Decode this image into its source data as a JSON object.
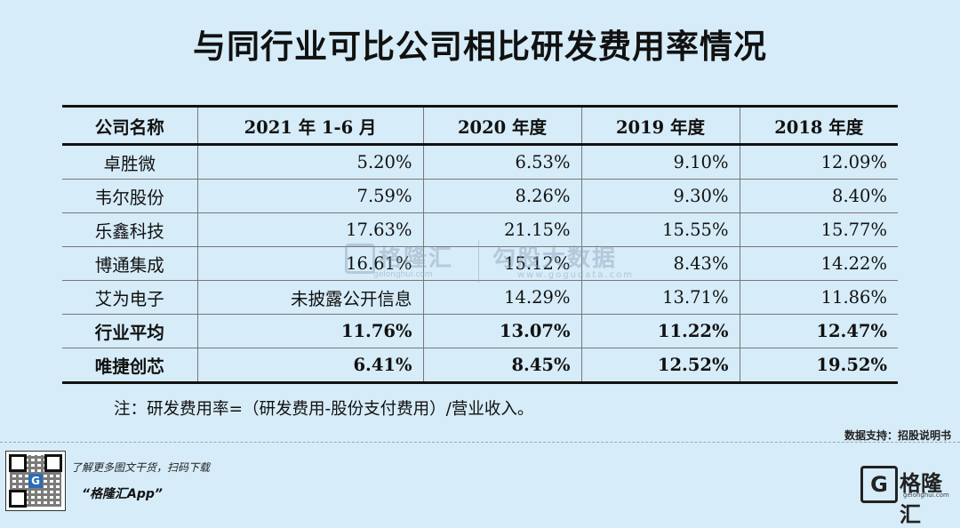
{
  "title": "与同行业可比公司相比研发费用率情况",
  "table": {
    "headers": [
      "公司名称",
      "2021 年 1-6 月",
      "2020 年度",
      "2019 年度",
      "2018 年度"
    ],
    "rows": [
      {
        "name": "卓胜微",
        "cells": [
          "5.20%",
          "6.53%",
          "9.10%",
          "12.09%"
        ],
        "bold": false
      },
      {
        "name": "韦尔股份",
        "cells": [
          "7.59%",
          "8.26%",
          "9.30%",
          "8.40%"
        ],
        "bold": false
      },
      {
        "name": "乐鑫科技",
        "cells": [
          "17.63%",
          "21.15%",
          "15.55%",
          "15.77%"
        ],
        "bold": false
      },
      {
        "name": "博通集成",
        "cells": [
          "16.61%",
          "15.12%",
          "8.43%",
          "14.22%"
        ],
        "bold": false
      },
      {
        "name": "艾为电子",
        "cells": [
          "未披露公开信息",
          "14.29%",
          "13.71%",
          "11.86%"
        ],
        "bold": false
      },
      {
        "name": "行业平均",
        "cells": [
          "11.76%",
          "13.07%",
          "11.22%",
          "12.47%"
        ],
        "bold": true
      },
      {
        "name": "唯捷创芯",
        "cells": [
          "6.41%",
          "8.45%",
          "12.52%",
          "19.52%"
        ],
        "bold": true
      }
    ]
  },
  "note": "注：研发费用率=（研发费用-股份支付费用）/营业收入。",
  "source": "数据支持：招股说明书",
  "promo": {
    "line1": "了解更多图文干货，扫码下载",
    "line2": "“格隆汇App”"
  },
  "logo": {
    "glyph": "G",
    "name": "格隆汇",
    "domain": "gelonghui.com",
    "bottom": "格隆汇"
  },
  "watermark": {
    "left": "格隆汇",
    "left_sub": "gelonghui.com",
    "right": "勾股大数据",
    "right_sub": "www.gogudata.com"
  }
}
